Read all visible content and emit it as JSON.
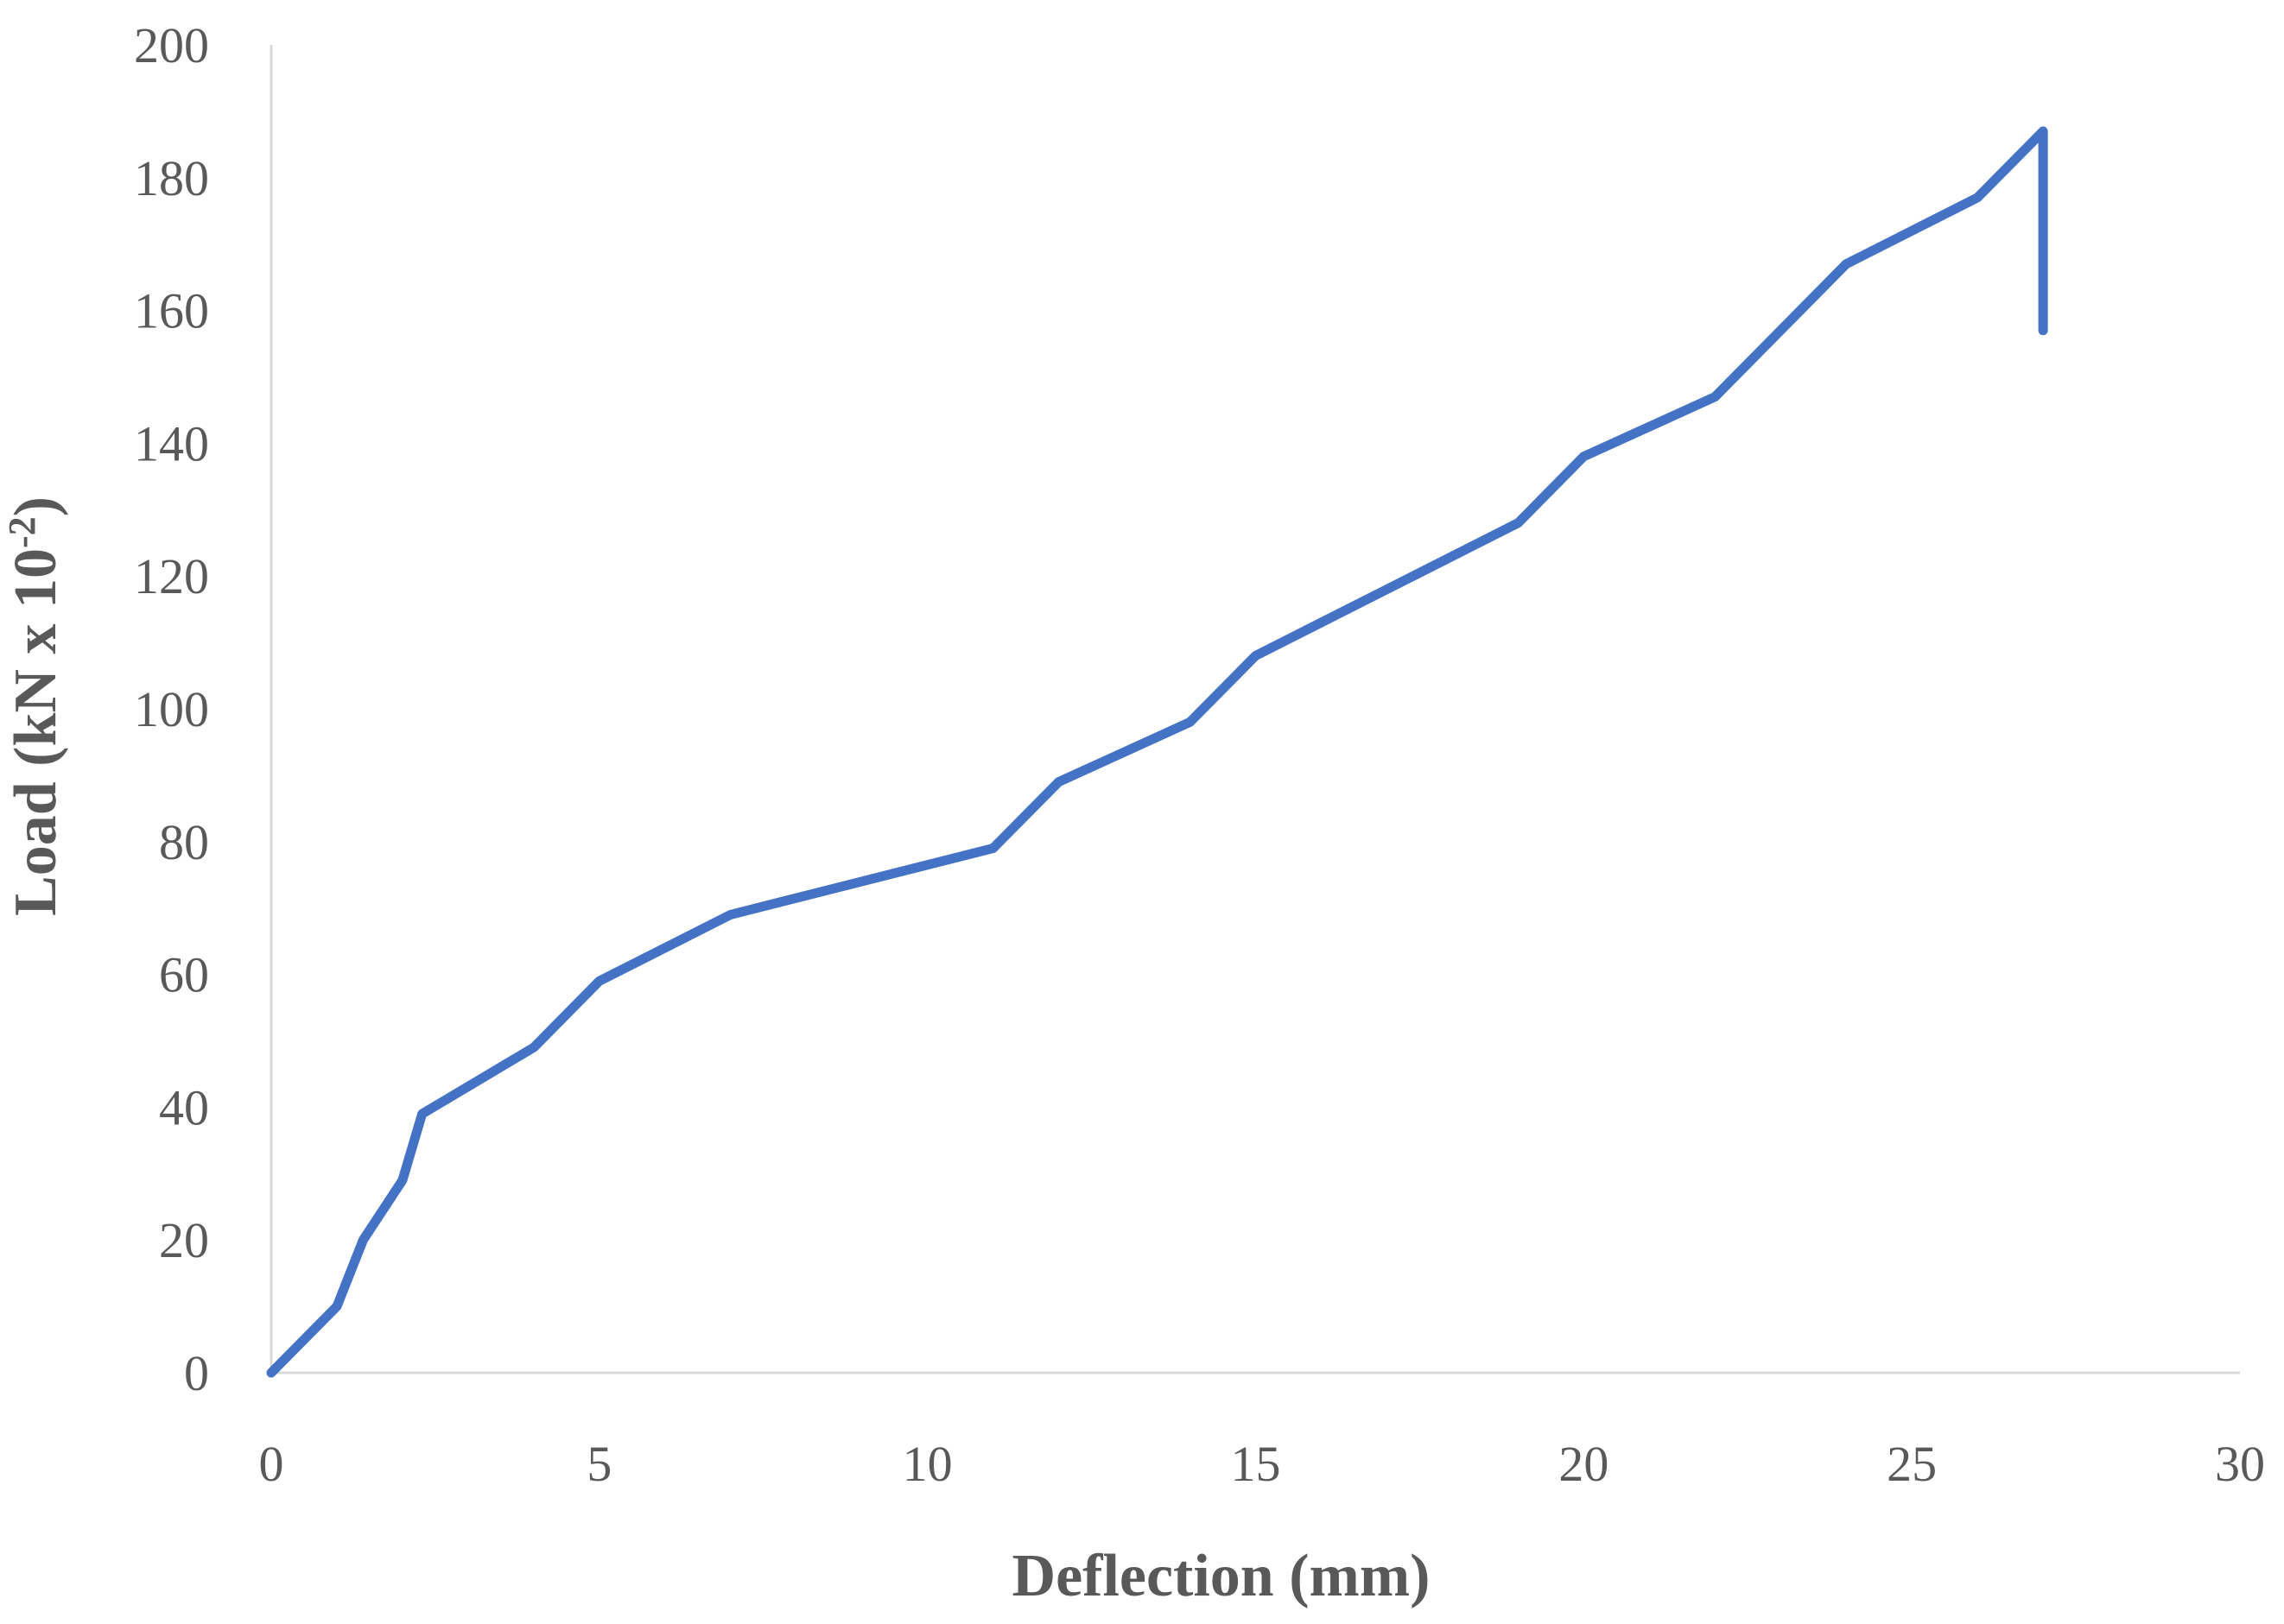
{
  "chart_data": {
    "type": "line",
    "title": "",
    "xlabel": "Deflection (mm)",
    "ylabel_parts": {
      "base": "Load (kN x 10",
      "superscript": "-2",
      "close": ")"
    },
    "xlim": [
      0,
      30
    ],
    "ylim": [
      0,
      200
    ],
    "x_ticks": [
      0,
      5,
      10,
      15,
      20,
      25,
      30
    ],
    "y_ticks": [
      0,
      20,
      40,
      60,
      80,
      100,
      120,
      140,
      160,
      180,
      200
    ],
    "grid": false,
    "legend": "none",
    "series": [
      {
        "color": "#4472C4",
        "points": [
          [
            0,
            0
          ],
          [
            1,
            10
          ],
          [
            1.4,
            20
          ],
          [
            2,
            29
          ],
          [
            2.3,
            39
          ],
          [
            4,
            49
          ],
          [
            5,
            59
          ],
          [
            7,
            69
          ],
          [
            11,
            79
          ],
          [
            12,
            89
          ],
          [
            14,
            98
          ],
          [
            15,
            108
          ],
          [
            17,
            118
          ],
          [
            19,
            128
          ],
          [
            20,
            138
          ],
          [
            22,
            147
          ],
          [
            24,
            167
          ],
          [
            26,
            177
          ],
          [
            27,
            187
          ],
          [
            27,
            157
          ]
        ]
      }
    ]
  }
}
